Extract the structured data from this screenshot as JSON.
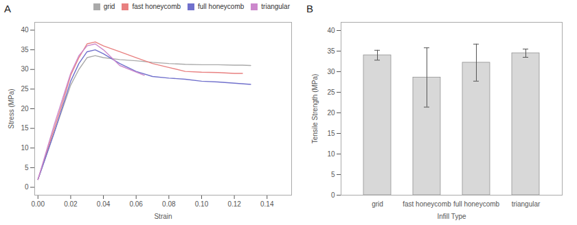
{
  "chart_data": [
    {
      "type": "line",
      "title": "A",
      "xlabel": "Strain",
      "ylabel": "Stress (MPa)",
      "series": [
        {
          "name": "grid",
          "color": "#aaaaaa",
          "x": [
            0.0,
            0.005,
            0.01,
            0.015,
            0.02,
            0.025,
            0.03,
            0.035,
            0.04,
            0.05,
            0.06,
            0.07,
            0.08,
            0.09,
            0.1,
            0.11,
            0.12,
            0.125,
            0.13
          ],
          "values": [
            2.0,
            8.0,
            14.0,
            20.0,
            26.0,
            30.0,
            33.0,
            33.5,
            33.0,
            32.5,
            32.2,
            31.8,
            31.5,
            31.3,
            31.2,
            31.2,
            31.1,
            31.1,
            31.0
          ]
        },
        {
          "name": "fast honeycomb",
          "color": "#e88080",
          "x": [
            0.0,
            0.005,
            0.01,
            0.015,
            0.02,
            0.025,
            0.03,
            0.035,
            0.04,
            0.05,
            0.06,
            0.07,
            0.08,
            0.09,
            0.1,
            0.11,
            0.12,
            0.125
          ],
          "values": [
            2.0,
            8.5,
            15.0,
            21.5,
            28.5,
            33.0,
            36.5,
            37.0,
            36.0,
            34.5,
            33.0,
            31.5,
            30.5,
            29.5,
            29.3,
            29.2,
            29.0,
            29.0
          ]
        },
        {
          "name": "full honeycomb",
          "color": "#7070cc",
          "x": [
            0.0,
            0.005,
            0.01,
            0.015,
            0.02,
            0.025,
            0.03,
            0.035,
            0.04,
            0.05,
            0.06,
            0.07,
            0.08,
            0.09,
            0.1,
            0.11,
            0.12,
            0.13
          ],
          "values": [
            2.0,
            8.0,
            14.0,
            20.5,
            27.0,
            31.5,
            34.5,
            35.0,
            34.0,
            31.5,
            29.5,
            28.2,
            27.8,
            27.5,
            27.0,
            26.8,
            26.5,
            26.2
          ]
        },
        {
          "name": "triangular",
          "color": "#cc88cc",
          "x": [
            0.0,
            0.005,
            0.01,
            0.015,
            0.02,
            0.025,
            0.03,
            0.035,
            0.04,
            0.05,
            0.065
          ],
          "values": [
            2.0,
            9.0,
            16.0,
            22.5,
            29.0,
            33.5,
            36.0,
            36.5,
            35.0,
            31.0,
            28.5
          ]
        }
      ],
      "xlim": [
        -0.002,
        0.155
      ],
      "xticks": [
        {
          "value": 0.0,
          "label": "0.00"
        },
        0.02,
        0.04,
        0.06,
        0.08,
        {
          "value": 0.1,
          "label": "0.10"
        },
        0.12,
        0.14
      ],
      "ylim": [
        -2,
        42
      ],
      "yticks": [
        0,
        5,
        10,
        15,
        20,
        25,
        30,
        35,
        40
      ],
      "legend": "upper right"
    },
    {
      "type": "bar",
      "title": "B",
      "xlabel": "Infill Type",
      "ylabel": "Tensile Strength (MPa)",
      "categories": [
        "grid",
        "fast honeycomb",
        "full honeycomb",
        "triangular"
      ],
      "values": [
        34.0,
        28.6,
        32.2,
        34.5
      ],
      "errors": [
        1.2,
        7.2,
        4.5,
        1.0
      ],
      "color": "#d8d8d8",
      "ylim": [
        0,
        42
      ],
      "yticks": [
        0,
        5,
        10,
        15,
        20,
        25,
        30,
        35,
        40
      ]
    }
  ]
}
